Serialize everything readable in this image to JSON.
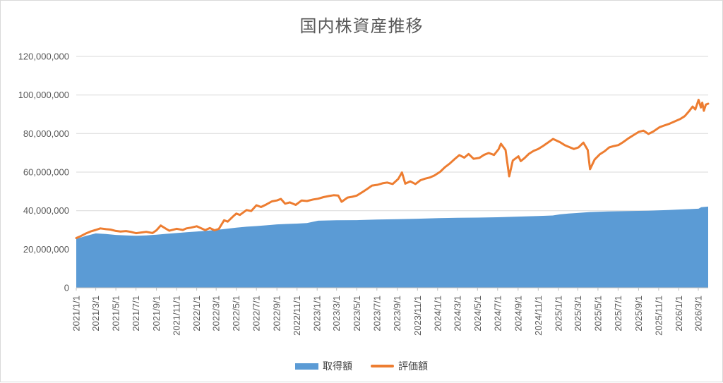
{
  "page": {
    "title": "国内株資産推移"
  },
  "legend": {
    "items": [
      {
        "label": "取得額",
        "color": "#5B9BD5",
        "swatch": "area"
      },
      {
        "label": "評価額",
        "color": "#ED7D31",
        "swatch": "line"
      }
    ]
  },
  "chart_data": {
    "type": "area",
    "title": "国内株資産推移",
    "xlabel": "",
    "ylabel": "",
    "ylim": [
      0,
      120000000
    ],
    "x_range": [
      "2021/1/1",
      "2026/3/31"
    ],
    "grid": true,
    "legend_position": "bottom",
    "style": {
      "grid_color": "#D9D9D9",
      "axis_color": "#BFBFBF",
      "text_color": "#595959",
      "background": "#FFFFFF",
      "border_color": "#D9D9D9",
      "area_color": "#5B9BD5",
      "line_color": "#ED7D31"
    },
    "yticks": [
      {
        "value": 0,
        "label": "0"
      },
      {
        "value": 20000000,
        "label": "20,000,000"
      },
      {
        "value": 40000000,
        "label": "40,000,000"
      },
      {
        "value": 60000000,
        "label": "60,000,000"
      },
      {
        "value": 80000000,
        "label": "80,000,000"
      },
      {
        "value": 100000000,
        "label": "100,000,000"
      },
      {
        "value": 120000000,
        "label": "120,000,000"
      }
    ],
    "xticks": [
      "2021/1/1",
      "2021/3/1",
      "2021/5/1",
      "2021/7/1",
      "2021/9/1",
      "2021/11/1",
      "2022/1/1",
      "2022/3/1",
      "2022/5/1",
      "2022/7/1",
      "2022/9/1",
      "2022/11/1",
      "2023/1/1",
      "2023/3/1",
      "2023/5/1",
      "2023/7/1",
      "2023/9/1",
      "2023/11/1",
      "2024/1/1",
      "2024/3/1",
      "2024/5/1",
      "2024/7/1",
      "2024/9/1",
      "2024/11/1",
      "2025/1/1",
      "2025/3/1",
      "2025/5/1",
      "2025/7/1",
      "2025/9/1",
      "2025/11/1",
      "2026/1/1",
      "2026/3/1"
    ],
    "series": [
      {
        "name": "取得額",
        "type": "area",
        "color": "#5B9BD5",
        "points": [
          [
            "2021/1/1",
            25300000
          ],
          [
            "2021/2/1",
            27000000
          ],
          [
            "2021/3/1",
            28200000
          ],
          [
            "2021/4/1",
            27900000
          ],
          [
            "2021/5/1",
            27400000
          ],
          [
            "2021/6/1",
            27200000
          ],
          [
            "2021/7/1",
            27000000
          ],
          [
            "2021/8/1",
            27200000
          ],
          [
            "2021/9/1",
            27500000
          ],
          [
            "2021/10/1",
            28000000
          ],
          [
            "2021/11/1",
            28400000
          ],
          [
            "2021/12/1",
            28800000
          ],
          [
            "2022/1/1",
            29200000
          ],
          [
            "2022/2/1",
            29600000
          ],
          [
            "2022/3/1",
            30000000
          ],
          [
            "2022/4/1",
            30600000
          ],
          [
            "2022/5/1",
            31200000
          ],
          [
            "2022/6/1",
            31700000
          ],
          [
            "2022/7/1",
            32000000
          ],
          [
            "2022/8/1",
            32400000
          ],
          [
            "2022/9/1",
            32900000
          ],
          [
            "2022/10/1",
            33100000
          ],
          [
            "2022/11/1",
            33300000
          ],
          [
            "2022/12/1",
            33600000
          ],
          [
            "2023/1/4",
            34800000
          ],
          [
            "2023/3/1",
            35000000
          ],
          [
            "2023/5/1",
            35100000
          ],
          [
            "2023/7/1",
            35400000
          ],
          [
            "2023/9/1",
            35600000
          ],
          [
            "2023/11/1",
            35800000
          ],
          [
            "2024/1/4",
            36100000
          ],
          [
            "2024/3/1",
            36300000
          ],
          [
            "2024/5/1",
            36400000
          ],
          [
            "2024/7/1",
            36600000
          ],
          [
            "2024/9/1",
            36900000
          ],
          [
            "2024/11/1",
            37200000
          ],
          [
            "2024/12/15",
            37500000
          ],
          [
            "2025/1/6",
            38100000
          ],
          [
            "2025/2/1",
            38500000
          ],
          [
            "2025/3/1",
            38800000
          ],
          [
            "2025/4/7",
            39300000
          ],
          [
            "2025/6/1",
            39600000
          ],
          [
            "2025/8/1",
            39800000
          ],
          [
            "2025/10/1",
            40000000
          ],
          [
            "2025/12/1",
            40300000
          ],
          [
            "2026/1/5",
            40600000
          ],
          [
            "2026/2/1",
            40800000
          ],
          [
            "2026/3/2",
            41000000
          ],
          [
            "2026/3/10",
            41800000
          ],
          [
            "2026/3/31",
            42100000
          ]
        ]
      },
      {
        "name": "評価額",
        "type": "line",
        "color": "#ED7D31",
        "points": [
          [
            "2021/1/1",
            25800000
          ],
          [
            "2021/1/15",
            26800000
          ],
          [
            "2021/2/1",
            28300000
          ],
          [
            "2021/2/15",
            29300000
          ],
          [
            "2021/3/1",
            30000000
          ],
          [
            "2021/3/15",
            30800000
          ],
          [
            "2021/4/1",
            30400000
          ],
          [
            "2021/4/15",
            30200000
          ],
          [
            "2021/5/1",
            29500000
          ],
          [
            "2021/5/15",
            29200000
          ],
          [
            "2021/6/1",
            29400000
          ],
          [
            "2021/6/15",
            29000000
          ],
          [
            "2021/7/1",
            28300000
          ],
          [
            "2021/7/15",
            28600000
          ],
          [
            "2021/8/1",
            29000000
          ],
          [
            "2021/8/20",
            28400000
          ],
          [
            "2021/9/1",
            29800000
          ],
          [
            "2021/9/14",
            32300000
          ],
          [
            "2021/10/1",
            30500000
          ],
          [
            "2021/10/10",
            29600000
          ],
          [
            "2021/11/1",
            30600000
          ],
          [
            "2021/11/20",
            30000000
          ],
          [
            "2021/12/1",
            30800000
          ],
          [
            "2021/12/15",
            31200000
          ],
          [
            "2022/1/1",
            31900000
          ],
          [
            "2022/1/27",
            29900000
          ],
          [
            "2022/2/10",
            31000000
          ],
          [
            "2022/2/24",
            29800000
          ],
          [
            "2022/3/9",
            30500000
          ],
          [
            "2022/3/25",
            35000000
          ],
          [
            "2022/4/5",
            34300000
          ],
          [
            "2022/4/20",
            36800000
          ],
          [
            "2022/5/1",
            38500000
          ],
          [
            "2022/5/12",
            37800000
          ],
          [
            "2022/6/1",
            40300000
          ],
          [
            "2022/6/15",
            39800000
          ],
          [
            "2022/7/1",
            42800000
          ],
          [
            "2022/7/15",
            41900000
          ],
          [
            "2022/8/1",
            43300000
          ],
          [
            "2022/8/17",
            44800000
          ],
          [
            "2022/9/1",
            45300000
          ],
          [
            "2022/9/13",
            46100000
          ],
          [
            "2022/9/26",
            43600000
          ],
          [
            "2022/10/10",
            44300000
          ],
          [
            "2022/10/28",
            43000000
          ],
          [
            "2022/11/15",
            45300000
          ],
          [
            "2022/12/1",
            45000000
          ],
          [
            "2022/12/20",
            45800000
          ],
          [
            "2023/1/4",
            46200000
          ],
          [
            "2023/1/20",
            47000000
          ],
          [
            "2023/2/6",
            47600000
          ],
          [
            "2023/2/20",
            48000000
          ],
          [
            "2023/3/6",
            47800000
          ],
          [
            "2023/3/16",
            44600000
          ],
          [
            "2023/4/3",
            46800000
          ],
          [
            "2023/4/17",
            47200000
          ],
          [
            "2023/5/1",
            47800000
          ],
          [
            "2023/5/17",
            49500000
          ],
          [
            "2023/6/1",
            51200000
          ],
          [
            "2023/6/16",
            53000000
          ],
          [
            "2023/7/3",
            53400000
          ],
          [
            "2023/7/18",
            54200000
          ],
          [
            "2023/8/1",
            54600000
          ],
          [
            "2023/8/18",
            53800000
          ],
          [
            "2023/9/4",
            56500000
          ],
          [
            "2023/9/15",
            59800000
          ],
          [
            "2023/9/25",
            54000000
          ],
          [
            "2023/10/10",
            55200000
          ],
          [
            "2023/10/26",
            53800000
          ],
          [
            "2023/11/10",
            55800000
          ],
          [
            "2023/11/24",
            56600000
          ],
          [
            "2023/12/8",
            57200000
          ],
          [
            "2023/12/22",
            58200000
          ],
          [
            "2024/1/9",
            60200000
          ],
          [
            "2024/1/23",
            62500000
          ],
          [
            "2024/2/6",
            64300000
          ],
          [
            "2024/2/22",
            66800000
          ],
          [
            "2024/3/7",
            68800000
          ],
          [
            "2024/3/22",
            67500000
          ],
          [
            "2024/4/4",
            69400000
          ],
          [
            "2024/4/19",
            66900000
          ],
          [
            "2024/5/7",
            67400000
          ],
          [
            "2024/5/20",
            68900000
          ],
          [
            "2024/6/4",
            69900000
          ],
          [
            "2024/6/20",
            68900000
          ],
          [
            "2024/7/4",
            71900000
          ],
          [
            "2024/7/11",
            74700000
          ],
          [
            "2024/7/25",
            71500000
          ],
          [
            "2024/8/5",
            57800000
          ],
          [
            "2024/8/16",
            66000000
          ],
          [
            "2024/9/2",
            68200000
          ],
          [
            "2024/9/9",
            65700000
          ],
          [
            "2024/9/20",
            67200000
          ],
          [
            "2024/10/4",
            69500000
          ],
          [
            "2024/10/18",
            71000000
          ],
          [
            "2024/11/1",
            72000000
          ],
          [
            "2024/11/15",
            73500000
          ],
          [
            "2024/12/2",
            75500000
          ],
          [
            "2024/12/16",
            77200000
          ],
          [
            "2025/1/6",
            75500000
          ],
          [
            "2025/1/20",
            74000000
          ],
          [
            "2025/2/3",
            73000000
          ],
          [
            "2025/2/17",
            72000000
          ],
          [
            "2025/3/3",
            72800000
          ],
          [
            "2025/3/18",
            75300000
          ],
          [
            "2025/3/31",
            71500000
          ],
          [
            "2025/4/7",
            61500000
          ],
          [
            "2025/4/21",
            66500000
          ],
          [
            "2025/5/7",
            69300000
          ],
          [
            "2025/5/21",
            70800000
          ],
          [
            "2025/6/4",
            72800000
          ],
          [
            "2025/6/18",
            73500000
          ],
          [
            "2025/7/2",
            74000000
          ],
          [
            "2025/7/16",
            75500000
          ],
          [
            "2025/8/1",
            77500000
          ],
          [
            "2025/8/15",
            79000000
          ],
          [
            "2025/9/1",
            80800000
          ],
          [
            "2025/9/16",
            81500000
          ],
          [
            "2025/10/1",
            79800000
          ],
          [
            "2025/10/15",
            81000000
          ],
          [
            "2025/11/4",
            83300000
          ],
          [
            "2025/11/18",
            84200000
          ],
          [
            "2025/12/2",
            85000000
          ],
          [
            "2025/12/16",
            86000000
          ],
          [
            "2026/1/5",
            87500000
          ],
          [
            "2026/1/19",
            89000000
          ],
          [
            "2026/2/2",
            91800000
          ],
          [
            "2026/2/12",
            94000000
          ],
          [
            "2026/2/20",
            92500000
          ],
          [
            "2026/3/2",
            97500000
          ],
          [
            "2026/3/9",
            93500000
          ],
          [
            "2026/3/13",
            96000000
          ],
          [
            "2026/3/18",
            91800000
          ],
          [
            "2026/3/24",
            95000000
          ],
          [
            "2026/3/31",
            95500000
          ]
        ]
      }
    ]
  }
}
